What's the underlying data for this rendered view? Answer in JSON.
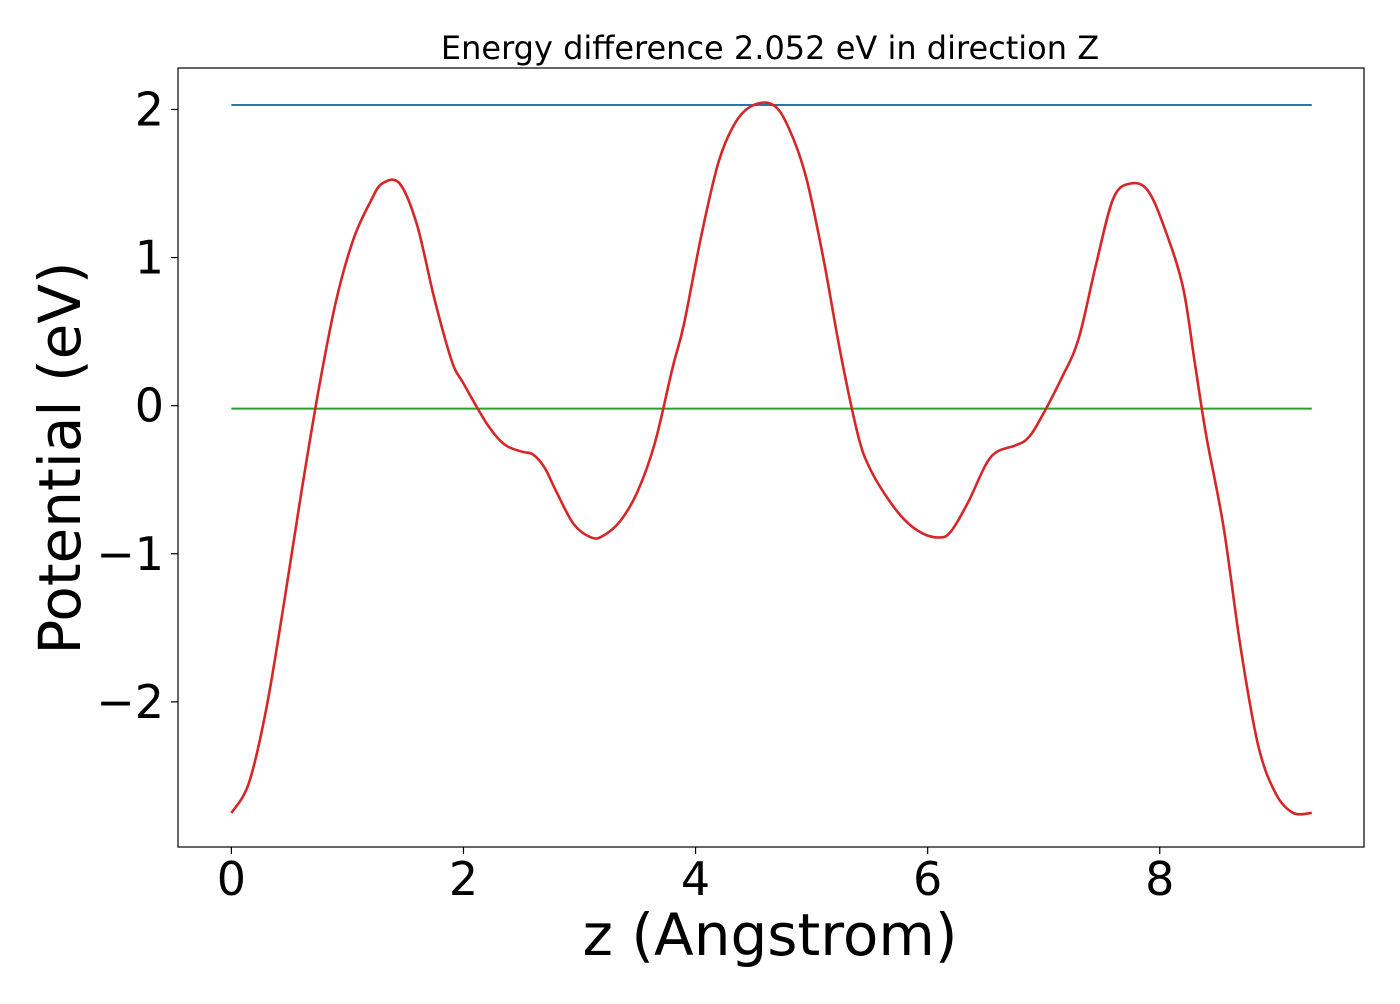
{
  "chart_data": {
    "type": "line",
    "title": "Energy difference 2.052 eV in direction Z",
    "xlabel": "z (Angstrom)",
    "ylabel": "Potential (eV)",
    "xlim": [
      -0.46,
      9.76
    ],
    "ylim": [
      -2.98,
      2.28
    ],
    "xticks": [
      {
        "value": 0,
        "label": "0"
      },
      {
        "value": 2,
        "label": "2"
      },
      {
        "value": 4,
        "label": "4"
      },
      {
        "value": 6,
        "label": "6"
      },
      {
        "value": 8,
        "label": "8"
      }
    ],
    "yticks": [
      {
        "value": -2,
        "label": "−2"
      },
      {
        "value": -1,
        "label": "−1"
      },
      {
        "value": 0,
        "label": "0"
      },
      {
        "value": 1,
        "label": "1"
      },
      {
        "value": 2,
        "label": "2"
      }
    ],
    "grid": false,
    "legend": "none",
    "series": [
      {
        "color": "#d62728",
        "x": [
          0.0,
          0.15,
          0.3,
          0.45,
          0.6,
          0.75,
          0.9,
          1.05,
          1.2,
          1.3,
          1.45,
          1.6,
          1.75,
          1.9,
          2.0,
          2.2,
          2.35,
          2.5,
          2.6,
          2.7,
          2.8,
          2.95,
          3.1,
          3.2,
          3.35,
          3.5,
          3.65,
          3.8,
          3.9,
          4.05,
          4.2,
          4.35,
          4.5,
          4.67,
          4.8,
          4.95,
          5.1,
          5.25,
          5.4,
          5.5,
          5.65,
          5.8,
          5.95,
          6.1,
          6.2,
          6.35,
          6.5,
          6.6,
          6.75,
          6.85,
          6.95,
          7.15,
          7.3,
          7.45,
          7.6,
          7.75,
          7.9,
          8.05,
          8.2,
          8.3,
          8.4,
          8.55,
          8.7,
          8.85,
          9.0,
          9.15,
          9.31
        ],
        "values": [
          -2.75,
          -2.55,
          -2.05,
          -1.35,
          -0.6,
          0.1,
          0.7,
          1.12,
          1.38,
          1.5,
          1.5,
          1.22,
          0.72,
          0.3,
          0.15,
          -0.12,
          -0.26,
          -0.31,
          -0.33,
          -0.42,
          -0.58,
          -0.8,
          -0.89,
          -0.88,
          -0.78,
          -0.58,
          -0.25,
          0.25,
          0.55,
          1.15,
          1.65,
          1.92,
          2.03,
          2.03,
          1.88,
          1.55,
          1.0,
          0.35,
          -0.2,
          -0.42,
          -0.62,
          -0.77,
          -0.86,
          -0.89,
          -0.85,
          -0.65,
          -0.4,
          -0.31,
          -0.27,
          -0.23,
          -0.12,
          0.18,
          0.45,
          0.95,
          1.4,
          1.5,
          1.45,
          1.18,
          0.8,
          0.3,
          -0.2,
          -0.82,
          -1.65,
          -2.3,
          -2.62,
          -2.75,
          -2.75
        ]
      },
      {
        "color": "#1f77b4",
        "x": [
          0.0,
          9.31
        ],
        "values": [
          2.03,
          2.03
        ]
      },
      {
        "color": "#2ca02c",
        "x": [
          0.0,
          9.31
        ],
        "values": [
          -0.02,
          -0.02
        ]
      }
    ]
  }
}
